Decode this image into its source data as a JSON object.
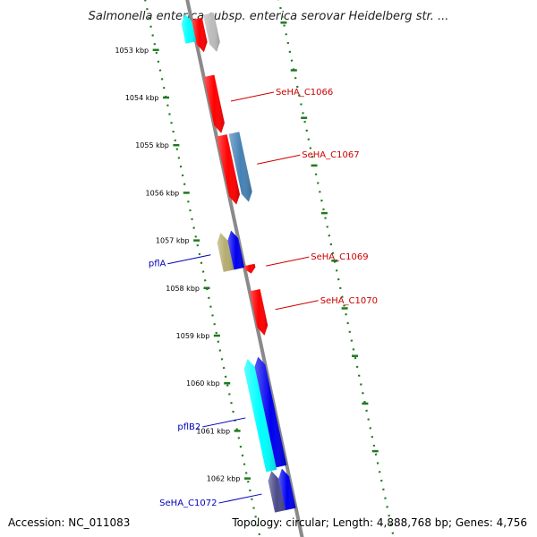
{
  "title": "Salmonella enterica subsp. enterica serovar Heidelberg str. ...",
  "footer": {
    "accession": "Accession: NC_011083",
    "topology": "Topology: circular; Length: 4,888,768 bp; Genes: 4,756"
  },
  "colors": {
    "backbone": "#8a8a8a",
    "tick_track": "#1e7a1e",
    "forward_label": "#cc0000",
    "reverse_label": "#0000bb",
    "gene_red": "#ff0000",
    "gene_blue": "#0000ee",
    "gene_cyan": "#00ffff",
    "gene_steelblue": "#4682b4",
    "gene_khaki": "#b5ad6e",
    "gene_slate": "#4b4a8a",
    "gene_gray": "#bbbbbb"
  },
  "scale": {
    "unit": "kbp",
    "ticks": [
      {
        "value": 1053,
        "label": "1053 kbp"
      },
      {
        "value": 1054,
        "label": "1054 kbp"
      },
      {
        "value": 1055,
        "label": "1055 kbp"
      },
      {
        "value": 1056,
        "label": "1056 kbp"
      },
      {
        "value": 1057,
        "label": "1057 kbp"
      },
      {
        "value": 1058,
        "label": "1058 kbp"
      },
      {
        "value": 1059,
        "label": "1059 kbp"
      },
      {
        "value": 1060,
        "label": "1060 kbp"
      },
      {
        "value": 1061,
        "label": "1061 kbp"
      },
      {
        "value": 1062,
        "label": "1062 kbp"
      }
    ]
  },
  "genes": [
    {
      "id": "g1",
      "label": "",
      "strand": "forward",
      "track": "f1",
      "start": 1052.55,
      "end": 1053.25,
      "color": "gene_red"
    },
    {
      "id": "g2",
      "label": "",
      "strand": "forward",
      "track": "f2",
      "start": 1052.5,
      "end": 1053.3,
      "color": "gene_gray"
    },
    {
      "id": "g3",
      "label": "",
      "strand": "reverse",
      "track": "r1",
      "start": 1052.4,
      "end": 1053.0,
      "color": "gene_cyan"
    },
    {
      "id": "g4",
      "label": "SeHA_C1066",
      "strand": "forward",
      "track": "f1",
      "start": 1053.75,
      "end": 1054.95,
      "color": "gene_red"
    },
    {
      "id": "g5",
      "label": "",
      "strand": "forward",
      "track": "f1",
      "start": 1055.0,
      "end": 1056.45,
      "color": "gene_red"
    },
    {
      "id": "g6",
      "label": "SeHA_C1067",
      "strand": "forward",
      "track": "f2",
      "start": 1055.0,
      "end": 1056.45,
      "color": "gene_steelblue"
    },
    {
      "id": "g7",
      "label": "pflA",
      "strand": "reverse",
      "track": "r2",
      "start": 1056.95,
      "end": 1057.75,
      "color": "gene_khaki"
    },
    {
      "id": "g8",
      "label": "",
      "strand": "reverse",
      "track": "r1",
      "start": 1056.95,
      "end": 1057.75,
      "color": "gene_blue"
    },
    {
      "id": "g9",
      "label": "SeHA_C1069",
      "strand": "forward",
      "track": "f1",
      "start": 1057.72,
      "end": 1057.9,
      "color": "gene_red"
    },
    {
      "id": "g10",
      "label": "SeHA_C1070",
      "strand": "forward",
      "track": "f1",
      "start": 1058.25,
      "end": 1059.2,
      "color": "gene_red"
    },
    {
      "id": "g11",
      "label": "pflB2",
      "strand": "reverse",
      "track": "r2",
      "start": 1059.6,
      "end": 1061.95,
      "color": "gene_cyan"
    },
    {
      "id": "g12",
      "label": "",
      "strand": "reverse",
      "track": "r1",
      "start": 1059.6,
      "end": 1061.9,
      "color": "gene_blue"
    },
    {
      "id": "g13",
      "label": "SeHA_C1072",
      "strand": "reverse",
      "track": "r2",
      "start": 1061.95,
      "end": 1062.8,
      "color": "gene_slate"
    },
    {
      "id": "g14",
      "label": "",
      "strand": "reverse",
      "track": "r1",
      "start": 1061.95,
      "end": 1062.8,
      "color": "gene_blue"
    }
  ]
}
